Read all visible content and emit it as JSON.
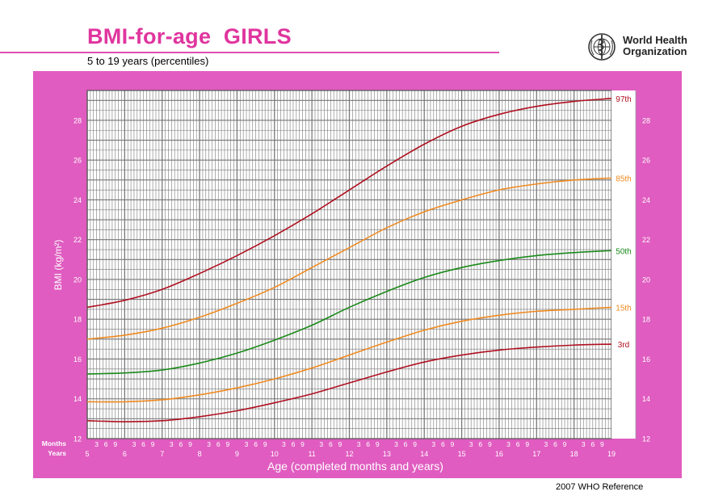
{
  "header": {
    "title": "BMI-for-age  GIRLS",
    "subtitle": "5 to 19 years (percentiles)",
    "logo": {
      "name_line1": "World Health",
      "name_line2": "Organization"
    }
  },
  "footer": {
    "reference": "2007 WHO Reference"
  },
  "colors": {
    "panel": "#e05cc0",
    "grid": "#777777",
    "p97": "#b01020",
    "p85": "#f08a20",
    "p50": "#1a8a1a",
    "p15": "#f08a20",
    "p3": "#b01020"
  },
  "chart_data": {
    "type": "line",
    "title": "BMI-for-age  GIRLS",
    "subtitle": "5 to 19 years (percentiles)",
    "xlabel": "Age (completed months and years)",
    "ylabel": "BMI (kg/m²)",
    "xlim": [
      5,
      19
    ],
    "ylim": [
      12,
      29.5
    ],
    "x_ticks": [
      5,
      6,
      7,
      8,
      9,
      10,
      11,
      12,
      13,
      14,
      15,
      16,
      17,
      18,
      19
    ],
    "y_ticks": [
      12,
      14,
      16,
      18,
      20,
      22,
      24,
      26,
      28
    ],
    "month_ticks": [
      "3",
      "6",
      "9"
    ],
    "axis_row_labels": {
      "months": "Months",
      "years": "Years"
    },
    "grid": true,
    "x": [
      5,
      6,
      7,
      8,
      9,
      10,
      11,
      12,
      13,
      14,
      15,
      16,
      17,
      18,
      19
    ],
    "series": [
      {
        "name": "97th",
        "values": [
          18.6,
          18.95,
          19.5,
          20.3,
          21.2,
          22.2,
          23.3,
          24.5,
          25.7,
          26.8,
          27.7,
          28.3,
          28.7,
          28.95,
          29.1
        ]
      },
      {
        "name": "85th",
        "values": [
          17.0,
          17.2,
          17.55,
          18.1,
          18.8,
          19.6,
          20.6,
          21.6,
          22.6,
          23.4,
          24.0,
          24.5,
          24.8,
          25.0,
          25.1
        ]
      },
      {
        "name": "50th",
        "values": [
          15.25,
          15.3,
          15.45,
          15.8,
          16.3,
          16.95,
          17.7,
          18.6,
          19.4,
          20.1,
          20.6,
          20.95,
          21.2,
          21.35,
          21.45
        ]
      },
      {
        "name": "15th",
        "values": [
          13.85,
          13.85,
          13.95,
          14.2,
          14.55,
          15.0,
          15.55,
          16.2,
          16.85,
          17.45,
          17.9,
          18.2,
          18.4,
          18.5,
          18.6
        ]
      },
      {
        "name": "3rd",
        "values": [
          12.9,
          12.85,
          12.9,
          13.1,
          13.4,
          13.8,
          14.25,
          14.8,
          15.35,
          15.85,
          16.2,
          16.45,
          16.6,
          16.7,
          16.75
        ]
      }
    ]
  }
}
